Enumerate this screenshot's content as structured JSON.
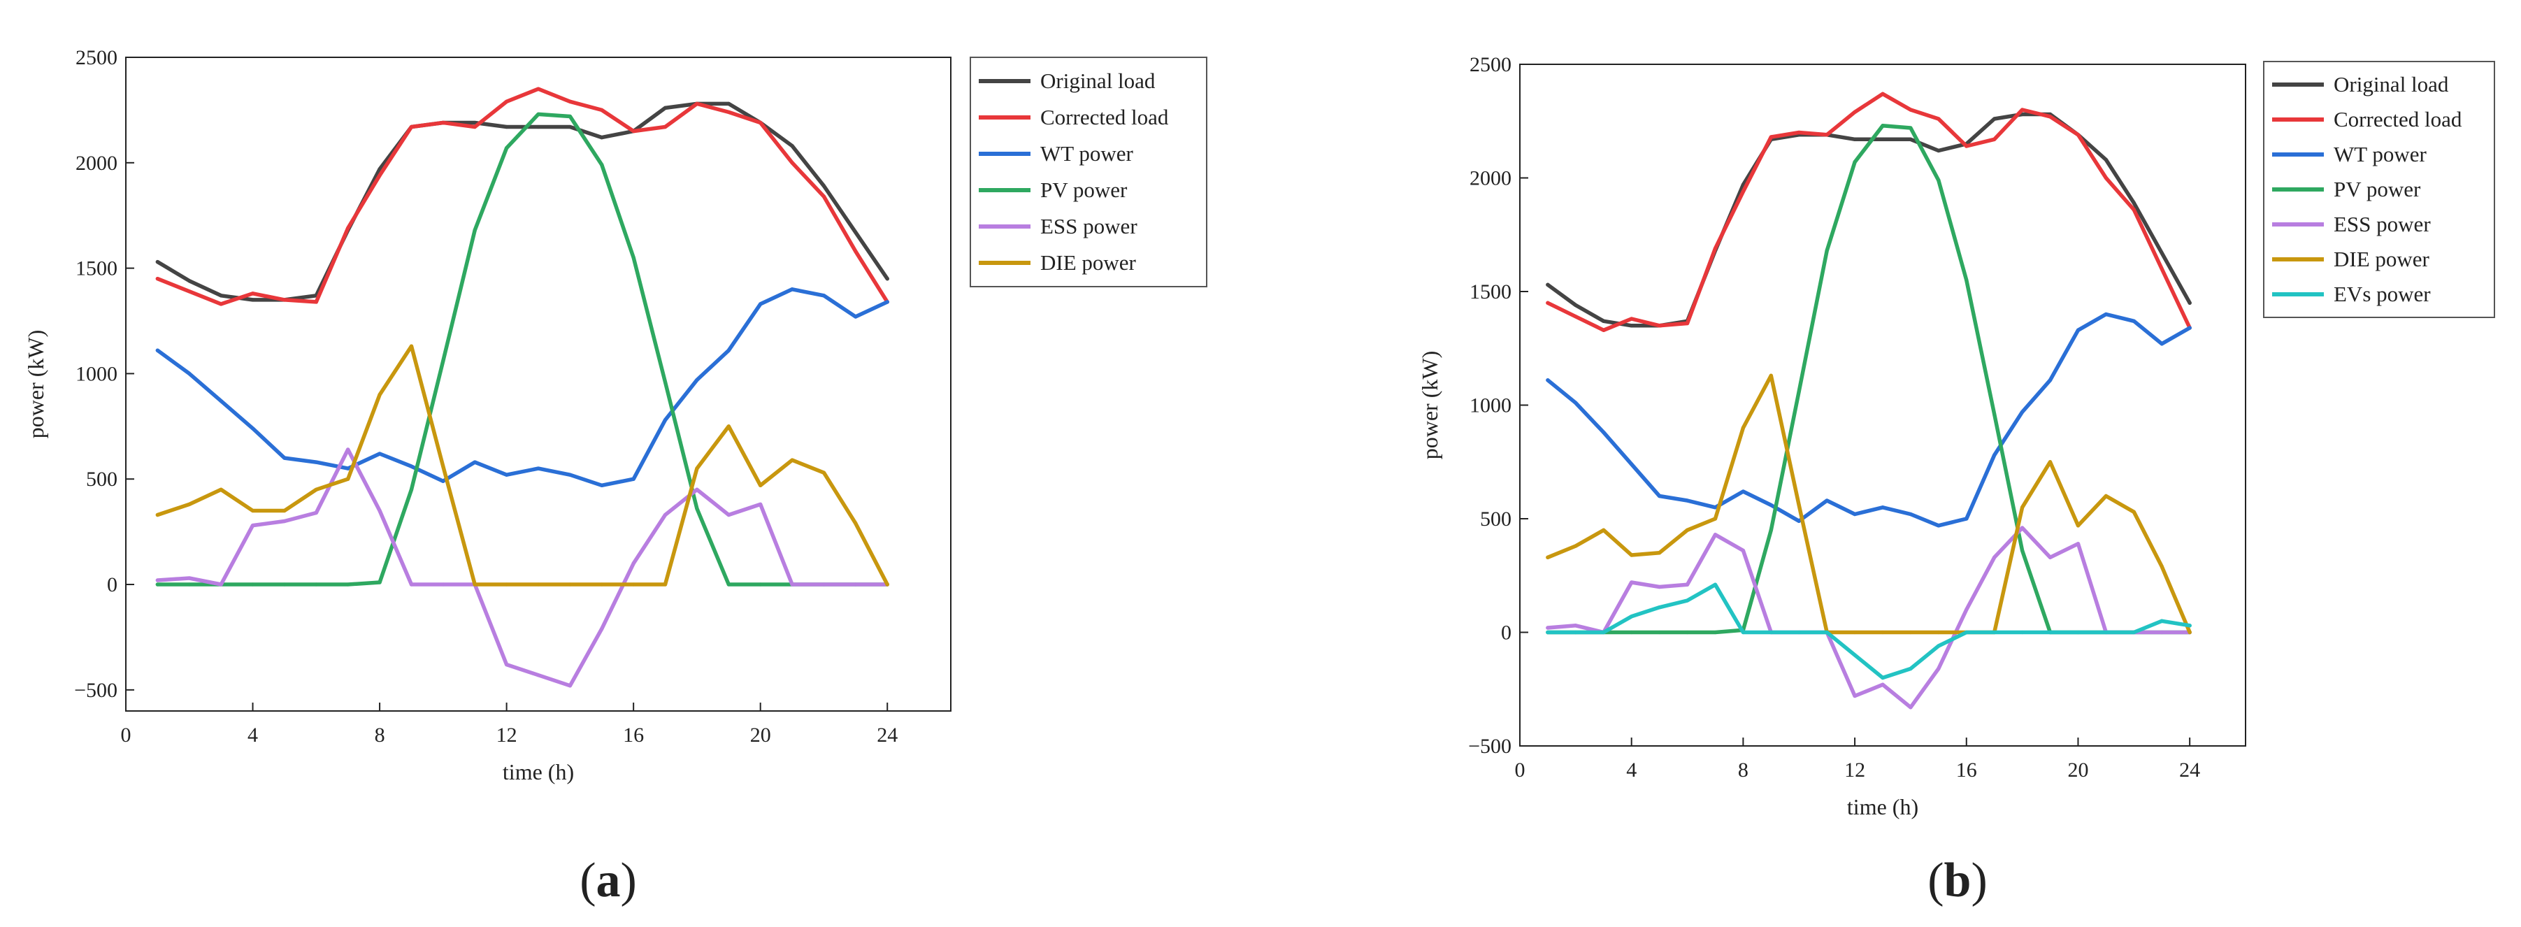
{
  "chart_data": [
    {
      "type": "line",
      "panel_label": "a",
      "xlabel": "time (h)",
      "ylabel": "power (kW)",
      "xlim": [
        0,
        26
      ],
      "ylim": [
        -600,
        2500
      ],
      "xticks": [
        0,
        4,
        8,
        12,
        16,
        20,
        24
      ],
      "yticks": [
        -500,
        0,
        500,
        1000,
        1500,
        2000,
        2500
      ],
      "legend_position": "outside-right-top",
      "x": [
        1,
        2,
        3,
        4,
        5,
        6,
        7,
        8,
        9,
        10,
        11,
        12,
        13,
        14,
        15,
        16,
        17,
        18,
        19,
        20,
        21,
        22,
        23,
        24
      ],
      "series": [
        {
          "name": "Original load",
          "color": "#444444",
          "values": [
            1530,
            1440,
            1370,
            1350,
            1350,
            1370,
            1680,
            1970,
            2170,
            2190,
            2190,
            2170,
            2170,
            2170,
            2120,
            2150,
            2260,
            2280,
            2280,
            2190,
            2080,
            1890,
            1670,
            1450
          ]
        },
        {
          "name": "Corrected load",
          "color": "#e8373a",
          "values": [
            1450,
            1390,
            1330,
            1380,
            1350,
            1340,
            1690,
            1940,
            2170,
            2190,
            2170,
            2290,
            2350,
            2290,
            2250,
            2150,
            2170,
            2280,
            2240,
            2190,
            2000,
            1840,
            1580,
            1340
          ]
        },
        {
          "name": "WT power",
          "color": "#2a6fd6",
          "values": [
            1110,
            1000,
            870,
            740,
            600,
            580,
            550,
            620,
            560,
            490,
            580,
            520,
            550,
            520,
            470,
            500,
            780,
            970,
            1110,
            1330,
            1400,
            1370,
            1270,
            1340
          ]
        },
        {
          "name": "PV power",
          "color": "#2ea860",
          "values": [
            0,
            0,
            0,
            0,
            0,
            0,
            0,
            10,
            450,
            1060,
            1680,
            2070,
            2230,
            2220,
            1990,
            1550,
            960,
            360,
            0,
            0,
            0,
            0,
            0,
            0
          ]
        },
        {
          "name": "ESS power",
          "color": "#b87ee0",
          "values": [
            20,
            30,
            0,
            280,
            300,
            340,
            640,
            350,
            0,
            0,
            0,
            -380,
            -430,
            -480,
            -210,
            100,
            330,
            450,
            330,
            380,
            0,
            0,
            0,
            0
          ]
        },
        {
          "name": "DIE power",
          "color": "#c8970e",
          "values": [
            330,
            380,
            450,
            350,
            350,
            450,
            500,
            900,
            1130,
            560,
            0,
            0,
            0,
            0,
            0,
            0,
            0,
            550,
            750,
            470,
            590,
            530,
            290,
            0
          ]
        }
      ]
    },
    {
      "type": "line",
      "panel_label": "b",
      "xlabel": "time (h)",
      "ylabel": "power (kW)",
      "xlim": [
        0,
        26
      ],
      "ylim": [
        -500,
        2500
      ],
      "xticks": [
        0,
        4,
        8,
        12,
        16,
        20,
        24
      ],
      "yticks": [
        -500,
        0,
        500,
        1000,
        1500,
        2000,
        2500
      ],
      "legend_position": "outside-right-top",
      "x": [
        1,
        2,
        3,
        4,
        5,
        6,
        7,
        8,
        9,
        10,
        11,
        12,
        13,
        14,
        15,
        16,
        17,
        18,
        19,
        20,
        21,
        22,
        23,
        24
      ],
      "series": [
        {
          "name": "Original load",
          "color": "#444444",
          "values": [
            1530,
            1440,
            1370,
            1350,
            1350,
            1370,
            1680,
            1970,
            2170,
            2190,
            2190,
            2170,
            2170,
            2170,
            2120,
            2150,
            2260,
            2280,
            2280,
            2190,
            2080,
            1890,
            1670,
            1450
          ]
        },
        {
          "name": "Corrected load",
          "color": "#e8373a",
          "values": [
            1450,
            1390,
            1330,
            1380,
            1350,
            1360,
            1690,
            1940,
            2180,
            2200,
            2190,
            2290,
            2370,
            2300,
            2260,
            2140,
            2170,
            2300,
            2270,
            2190,
            2000,
            1860,
            1600,
            1340
          ]
        },
        {
          "name": "WT power",
          "color": "#2a6fd6",
          "values": [
            1110,
            1010,
            880,
            740,
            600,
            580,
            550,
            620,
            560,
            490,
            580,
            520,
            550,
            520,
            470,
            500,
            780,
            970,
            1110,
            1330,
            1400,
            1370,
            1270,
            1340
          ]
        },
        {
          "name": "PV power",
          "color": "#2ea860",
          "values": [
            0,
            0,
            0,
            0,
            0,
            0,
            0,
            10,
            450,
            1060,
            1680,
            2070,
            2230,
            2220,
            1990,
            1550,
            960,
            360,
            0,
            0,
            0,
            0,
            0,
            0
          ]
        },
        {
          "name": "ESS power",
          "color": "#b87ee0",
          "values": [
            20,
            30,
            0,
            220,
            200,
            210,
            430,
            360,
            0,
            0,
            0,
            -280,
            -230,
            -330,
            -160,
            100,
            330,
            460,
            330,
            390,
            0,
            0,
            0,
            0
          ]
        },
        {
          "name": "DIE power",
          "color": "#c8970e",
          "values": [
            330,
            380,
            450,
            340,
            350,
            450,
            500,
            900,
            1130,
            560,
            0,
            0,
            0,
            0,
            0,
            0,
            0,
            550,
            750,
            470,
            600,
            530,
            290,
            0
          ]
        },
        {
          "name": "EVs power",
          "color": "#22c3c3",
          "values": [
            0,
            0,
            0,
            70,
            110,
            140,
            210,
            0,
            0,
            0,
            0,
            -100,
            -200,
            -160,
            -60,
            0,
            0,
            0,
            0,
            0,
            0,
            0,
            50,
            30
          ]
        }
      ]
    }
  ]
}
